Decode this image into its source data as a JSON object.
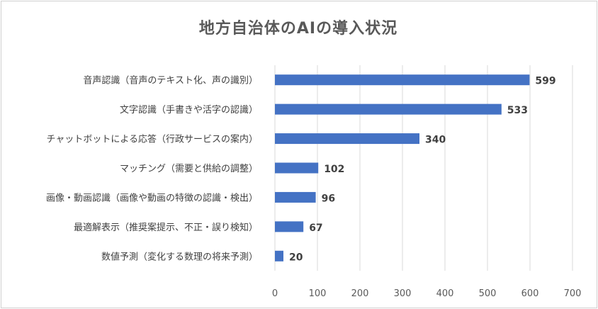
{
  "chart_data": {
    "type": "bar",
    "orientation": "horizontal",
    "title": "地方自治体のAIの導入状況",
    "categories": [
      "音声認識（音声のテキスト化、声の識別）",
      "文字認識（手書きや活字の認識）",
      "チャットボットによる応答（行政サービスの案内）",
      "マッチング（需要と供給の調整）",
      "画像・動画認識（画像や動画の特徴の認識・検出）",
      "最適解表示（推奨案提示、不正・誤り検知）",
      "数値予測（変化する数理の将来予測）"
    ],
    "values": [
      599,
      533,
      340,
      102,
      96,
      67,
      20
    ],
    "xlim": [
      0,
      700
    ],
    "xticks": [
      0,
      100,
      200,
      300,
      400,
      500,
      600,
      700
    ],
    "grid": true,
    "legend": "none",
    "bar_color": "#4472C4",
    "grid_color": "#d9d9d9"
  }
}
